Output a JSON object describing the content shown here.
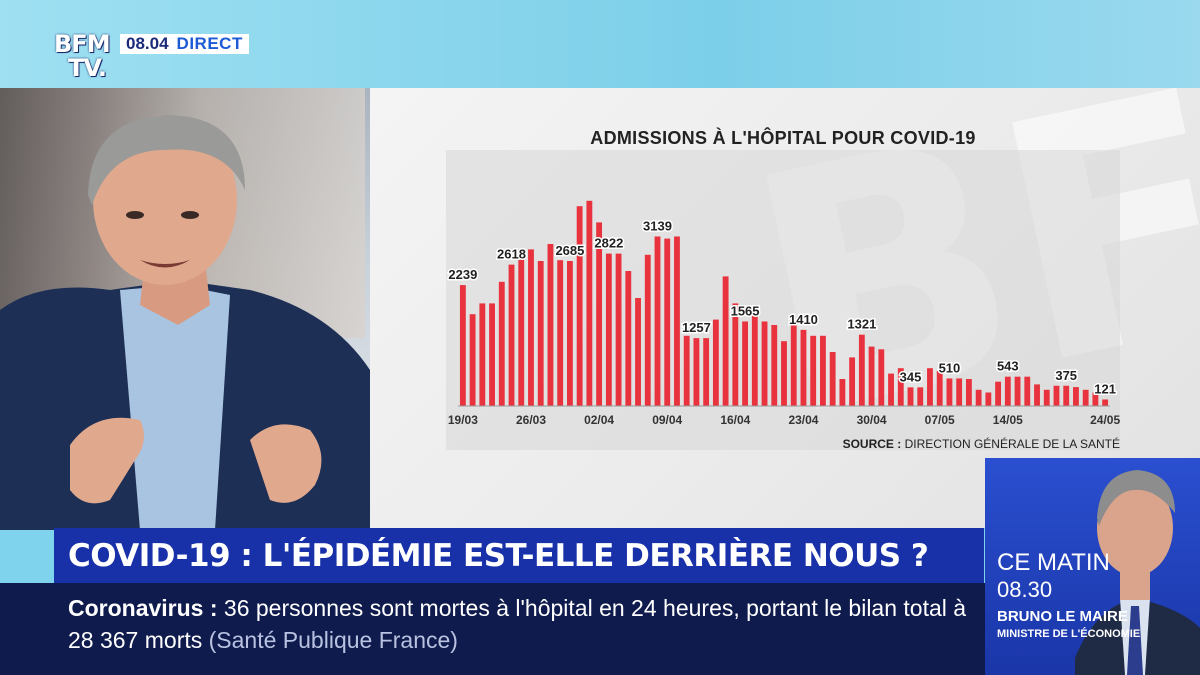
{
  "channel": {
    "logo_line1": "BFM",
    "logo_line2": "TV.",
    "time": "08.04",
    "live_label": "DIRECT"
  },
  "chart_data": {
    "type": "bar",
    "title": "ADMISSIONS À L'HÔPITAL POUR COVID-19",
    "source_label": "SOURCE :",
    "source_text": "DIRECTION GÉNÉRALE DE LA SANTÉ",
    "x_tick_labels": [
      "19/03",
      "26/03",
      "02/04",
      "09/04",
      "16/04",
      "23/04",
      "30/04",
      "07/05",
      "14/05",
      "24/05"
    ],
    "x_tick_indices": [
      0,
      7,
      14,
      21,
      28,
      35,
      42,
      49,
      56,
      66
    ],
    "values": [
      2239,
      1700,
      1900,
      1900,
      2300,
      2618,
      2900,
      2900,
      2685,
      3000,
      2700,
      2685,
      3700,
      3800,
      3400,
      2822,
      2822,
      2500,
      2000,
      2800,
      3139,
      3100,
      3139,
      1300,
      1257,
      1257,
      1600,
      2400,
      1900,
      1565,
      1700,
      1565,
      1500,
      1200,
      1500,
      1410,
      1300,
      1300,
      1000,
      500,
      900,
      1321,
      1100,
      1050,
      600,
      700,
      345,
      345,
      700,
      650,
      510,
      510,
      500,
      300,
      250,
      450,
      543,
      543,
      543,
      400,
      300,
      375,
      375,
      350,
      300,
      250,
      121
    ],
    "data_labels": [
      {
        "index": 0,
        "text": "2239"
      },
      {
        "index": 5,
        "text": "2618"
      },
      {
        "index": 11,
        "text": "2685"
      },
      {
        "index": 15,
        "text": "2822"
      },
      {
        "index": 20,
        "text": "3139"
      },
      {
        "index": 24,
        "text": "1257"
      },
      {
        "index": 29,
        "text": "1565"
      },
      {
        "index": 35,
        "text": "1410"
      },
      {
        "index": 41,
        "text": "1321"
      },
      {
        "index": 46,
        "text": "345"
      },
      {
        "index": 50,
        "text": "510"
      },
      {
        "index": 56,
        "text": "543"
      },
      {
        "index": 62,
        "text": "375"
      },
      {
        "index": 66,
        "text": "121"
      }
    ],
    "ylim": [
      0,
      4000
    ],
    "bar_color": "#e8323d",
    "grid": false
  },
  "headline": {
    "text": "COVID-19 : L'ÉPIDÉMIE EST-ELLE DERRIÈRE NOUS ?"
  },
  "ticker": {
    "keyword": "Coronavirus  :",
    "text": " 36 personnes sont mortes à l'hôpital en 24 heures, portant le bilan total à 28 367 morts ",
    "source": "(Santé Publique France)"
  },
  "promo": {
    "title": "CE MATIN",
    "time": "08.30",
    "guest_name": "BRUNO LE MAIRE",
    "guest_role": "MINISTRE DE L'ÉCONOMIE"
  },
  "colors": {
    "headline_bg": "#1830a8",
    "ticker_bg": "#0f1b4c",
    "promo_bg": "#2a4fd0"
  }
}
